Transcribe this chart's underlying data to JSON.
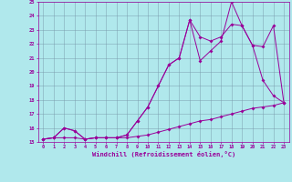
{
  "xlabel": "Windchill (Refroidissement éolien,°C)",
  "background_color": "#b0e8ec",
  "grid_color": "#7799aa",
  "line_color": "#990099",
  "x_data": [
    0,
    1,
    2,
    3,
    4,
    5,
    6,
    7,
    8,
    9,
    10,
    11,
    12,
    13,
    14,
    15,
    16,
    17,
    18,
    19,
    20,
    21,
    22,
    23
  ],
  "zigzag": [
    15.2,
    15.3,
    16.0,
    15.8,
    15.2,
    15.3,
    15.3,
    15.3,
    15.5,
    16.5,
    17.5,
    19.0,
    20.5,
    21.0,
    23.7,
    20.8,
    21.5,
    22.2,
    25.0,
    23.3,
    21.9,
    19.4,
    18.3,
    17.8
  ],
  "lower_line": [
    15.2,
    15.3,
    15.3,
    15.3,
    15.2,
    15.3,
    15.3,
    15.3,
    15.3,
    15.4,
    15.5,
    15.7,
    15.9,
    16.1,
    16.3,
    16.5,
    16.6,
    16.8,
    17.0,
    17.2,
    17.4,
    17.5,
    17.6,
    17.8
  ],
  "upper_line": [
    15.2,
    15.3,
    16.0,
    15.8,
    15.2,
    15.3,
    15.3,
    15.3,
    15.5,
    16.5,
    17.5,
    19.0,
    20.5,
    21.0,
    23.7,
    22.5,
    22.2,
    22.5,
    23.4,
    23.3,
    21.9,
    21.8,
    23.3,
    17.8
  ],
  "ylim": [
    15,
    25
  ],
  "xlim": [
    -0.5,
    23.5
  ],
  "yticks": [
    15,
    16,
    17,
    18,
    19,
    20,
    21,
    22,
    23,
    24,
    25
  ],
  "xticks": [
    0,
    1,
    2,
    3,
    4,
    5,
    6,
    7,
    8,
    9,
    10,
    11,
    12,
    13,
    14,
    15,
    16,
    17,
    18,
    19,
    20,
    21,
    22,
    23
  ]
}
